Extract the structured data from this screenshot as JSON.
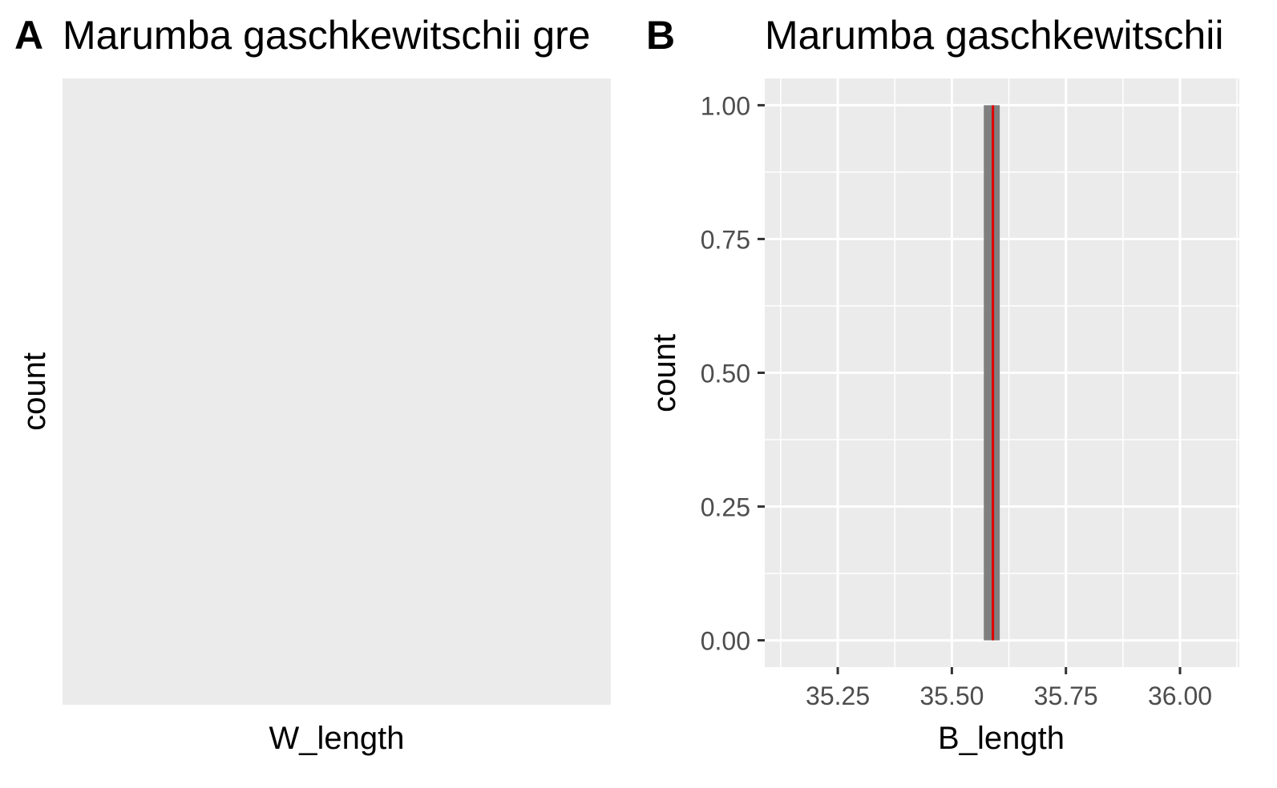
{
  "panels": {
    "a": {
      "tag": "A",
      "title": "Marumba gaschkewitschii gre",
      "xlabel": "W_length",
      "ylabel": "count"
    },
    "b": {
      "tag": "B",
      "title": "Marumba gaschkewitschii",
      "xlabel": "B_length",
      "ylabel": "count",
      "x_ticks": [
        "35.25",
        "35.50",
        "35.75",
        "36.00"
      ],
      "y_ticks": [
        "0.00",
        "0.25",
        "0.50",
        "0.75",
        "1.00"
      ]
    }
  },
  "chart_data": [
    {
      "panel": "A",
      "type": "bar",
      "title": "Marumba gaschkewitschii gre",
      "xlabel": "W_length",
      "ylabel": "count",
      "values": [],
      "grid": false
    },
    {
      "panel": "B",
      "type": "bar",
      "title": "Marumba gaschkewitschii",
      "xlabel": "B_length",
      "ylabel": "count",
      "xlim": [
        35.09,
        36.13
      ],
      "ylim": [
        -0.05,
        1.05
      ],
      "x_ticks": [
        35.25,
        35.5,
        35.75,
        36.0
      ],
      "y_ticks": [
        0,
        0.25,
        0.5,
        0.75,
        1.0
      ],
      "bars": [
        {
          "x0": 35.57,
          "x1": 35.605,
          "count": 1
        }
      ],
      "vline": {
        "x": 35.59,
        "color": "#e00000"
      },
      "colors": {
        "panel_bg": "#ebebeb",
        "bar": "#7f7f7f",
        "grid": "#ffffff",
        "vline": "#e00000"
      },
      "grid": true
    }
  ]
}
